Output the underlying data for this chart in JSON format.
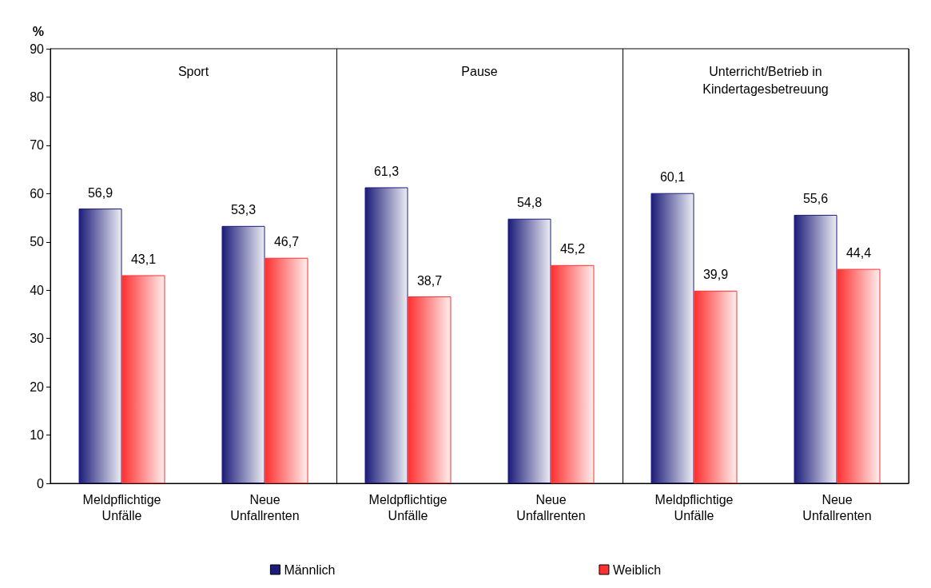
{
  "chart_data": {
    "type": "bar",
    "ylabel": "%",
    "categories": [
      "Meldpflichtige\nUnfälle",
      "Neue\nUnfallrenten",
      "Meldpflichtige\nUnfälle",
      "Neue\nUnfallrenten",
      "Meldpflichtige\nUnfälle",
      "Neue\nUnfallrenten"
    ],
    "series": [
      {
        "name": "Männlich",
        "color": "#1c1c7a",
        "values": [
          56.9,
          53.3,
          61.3,
          54.8,
          60.1,
          55.6
        ],
        "value_labels": [
          "56,9",
          "53,3",
          "61,3",
          "54,8",
          "60,1",
          "55,6"
        ]
      },
      {
        "name": "Weiblich",
        "color": "#ff3030",
        "values": [
          43.1,
          46.7,
          38.7,
          45.2,
          39.9,
          44.4
        ],
        "value_labels": [
          "43,1",
          "46,7",
          "38,7",
          "45,2",
          "39,9",
          "44,4"
        ]
      }
    ],
    "annotations": [
      "Sport",
      "Pause",
      "Unterricht/Betrieb in\nKindertagesbetreuung"
    ],
    "ylim": [
      0,
      90
    ],
    "yticks": [
      0,
      10,
      20,
      30,
      40,
      50,
      60,
      70,
      80,
      90
    ],
    "grid": false,
    "legend": "bottom"
  }
}
